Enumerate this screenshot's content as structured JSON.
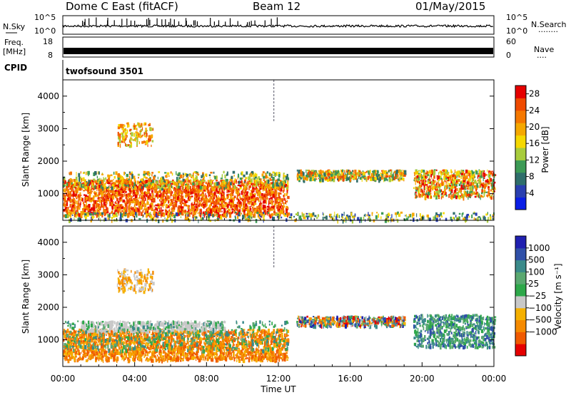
{
  "header": {
    "station": "Dome C East (fitACF)",
    "beam": "Beam 12",
    "date": "01/May/2015"
  },
  "panels": {
    "nsky": {
      "label": "N.Sky",
      "left_ticks": [
        "10^5",
        "10^0"
      ],
      "right_ticks": [
        "10^5",
        "10^0"
      ],
      "right_label": "N.Search",
      "legend_dots": "········"
    },
    "freq": {
      "label": "Freq.",
      "unit": "[MHz]",
      "left_ticks": [
        "18",
        "8"
      ],
      "right_ticks": [
        "60",
        "0"
      ],
      "right_label": "Nave",
      "legend_dots": "····"
    },
    "cpid": {
      "label": "CPID",
      "value": "twofsound 3501"
    }
  },
  "colors": {
    "power": [
      "#0a1ee6",
      "#2a3fb0",
      "#2f6e6b",
      "#3c9a55",
      "#a8cc3c",
      "#f5d800",
      "#f5a800",
      "#f57800",
      "#ef4a00",
      "#e60000"
    ],
    "velocity": [
      "#e60000",
      "#f05a00",
      "#f58a00",
      "#f5b000",
      "#c8c8c8",
      "#2ea84a",
      "#5aa870",
      "#3a8a8a",
      "#3050a8",
      "#2020b0"
    ]
  },
  "chart_data": [
    {
      "type": "heatmap",
      "title": "",
      "xlabel": "",
      "ylabel": "Slant Range [km]",
      "x": [
        "00:00",
        "04:00",
        "08:00",
        "12:00",
        "16:00",
        "20:00",
        "00:00"
      ],
      "y": [
        1000,
        2000,
        3000,
        4000
      ],
      "ylim": [
        180,
        4500
      ],
      "colorbar": {
        "label": "Power [dB]",
        "ticks": [
          "4",
          "8",
          "12",
          "16",
          "20",
          "24",
          "28"
        ],
        "range": [
          0,
          30
        ]
      },
      "echo_regions": [
        {
          "t_start": 0,
          "t_end": 12.5,
          "range_low": 300,
          "range_high": 1500,
          "value": "high (24–30 dB)"
        },
        {
          "t_start": 13,
          "t_end": 19,
          "range_low": 1400,
          "range_high": 1800,
          "value": "moderate (12–20 dB)"
        },
        {
          "t_start": 19.5,
          "t_end": 24,
          "range_low": 700,
          "range_high": 1800,
          "value": "moderate–high"
        },
        {
          "t_start": 3,
          "t_end": 5,
          "range_low": 2500,
          "range_high": 3200,
          "value": "moderate"
        }
      ]
    },
    {
      "type": "heatmap",
      "title": "",
      "xlabel": "Time UT",
      "ylabel": "Slant Range [km]",
      "x": [
        "00:00",
        "04:00",
        "08:00",
        "12:00",
        "16:00",
        "20:00",
        "00:00"
      ],
      "y": [
        1000,
        2000,
        3000,
        4000
      ],
      "ylim": [
        180,
        4500
      ],
      "colorbar": {
        "label": "Velocity [m s⁻¹]",
        "ticks": [
          "1000",
          "500",
          "100",
          "25",
          "−25",
          "−100",
          "−500",
          "−1000"
        ]
      },
      "echo_regions": [
        {
          "t_start": 0,
          "t_end": 12.5,
          "range_low": 300,
          "range_high": 1500,
          "value": "negative (-100 to -500 m/s)"
        },
        {
          "t_start": 13,
          "t_end": 19,
          "range_low": 1400,
          "range_high": 1800,
          "value": "mixed"
        },
        {
          "t_start": 19.5,
          "t_end": 24,
          "range_low": 700,
          "range_high": 1800,
          "value": "positive (100–500 m/s)"
        }
      ]
    }
  ]
}
